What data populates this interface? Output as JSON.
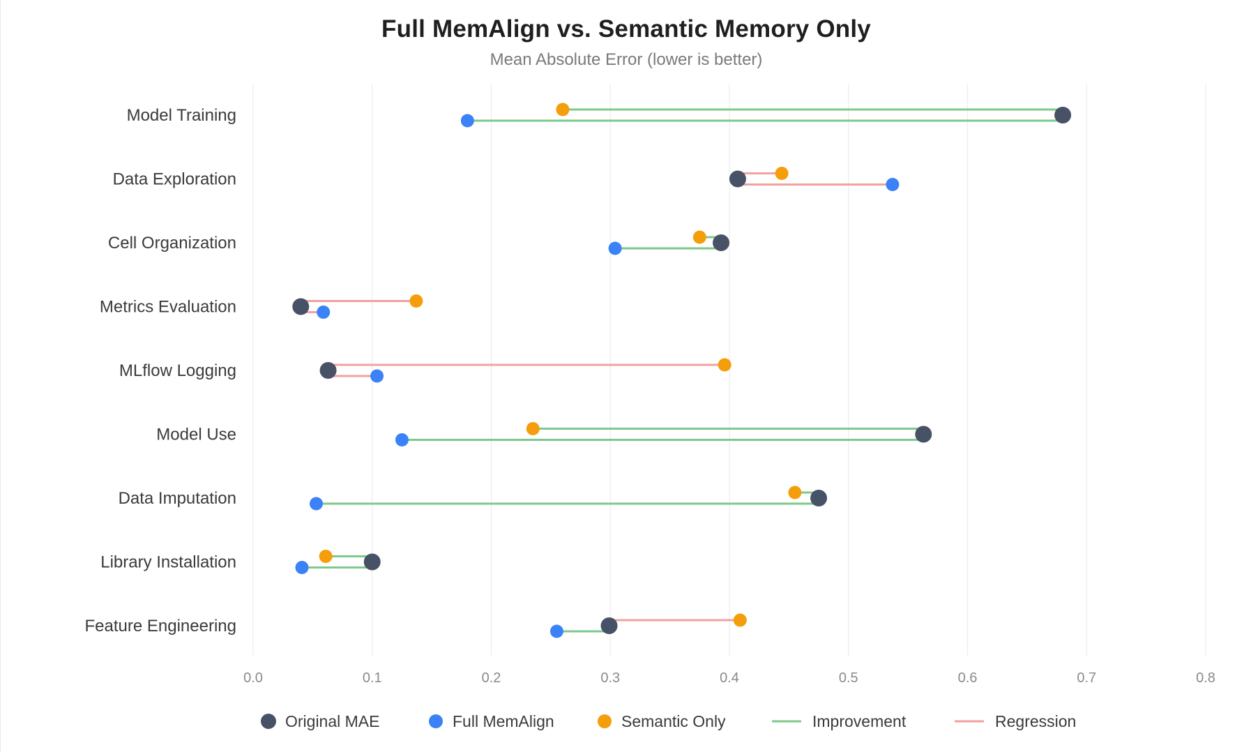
{
  "chart_data": {
    "type": "dumbbell",
    "title": "Full MemAlign vs. Semantic Memory Only",
    "subtitle": "Mean Absolute Error (lower is better)",
    "xlim": [
      0.0,
      0.8
    ],
    "x_ticks": [
      "0.0",
      "0.1",
      "0.2",
      "0.3",
      "0.4",
      "0.5",
      "0.6",
      "0.7",
      "0.8"
    ],
    "x_tick_values": [
      0.0,
      0.1,
      0.2,
      0.3,
      0.4,
      0.5,
      0.6,
      0.7,
      0.8
    ],
    "grid": true,
    "legend_position": "bottom",
    "categories": [
      "Model Training",
      "Data Exploration",
      "Cell Organization",
      "Metrics Evaluation",
      "MLflow Logging",
      "Model Use",
      "Data Imputation",
      "Library Installation",
      "Feature Engineering"
    ],
    "series": [
      {
        "name": "Original MAE",
        "color": "#475266",
        "values": [
          0.68,
          0.407,
          0.393,
          0.04,
          0.063,
          0.563,
          0.475,
          0.1,
          0.299
        ]
      },
      {
        "name": "Full MemAlign",
        "color": "#3b82f6",
        "values": [
          0.18,
          0.537,
          0.304,
          0.059,
          0.104,
          0.125,
          0.053,
          0.041,
          0.255
        ]
      },
      {
        "name": "Semantic Only",
        "color": "#f59e0b",
        "values": [
          0.26,
          0.444,
          0.375,
          0.137,
          0.396,
          0.235,
          0.455,
          0.061,
          0.409
        ]
      }
    ],
    "line_legend": [
      {
        "name": "Improvement",
        "color": "#7cc98a"
      },
      {
        "name": "Regression",
        "color": "#f2a0a0"
      }
    ]
  }
}
